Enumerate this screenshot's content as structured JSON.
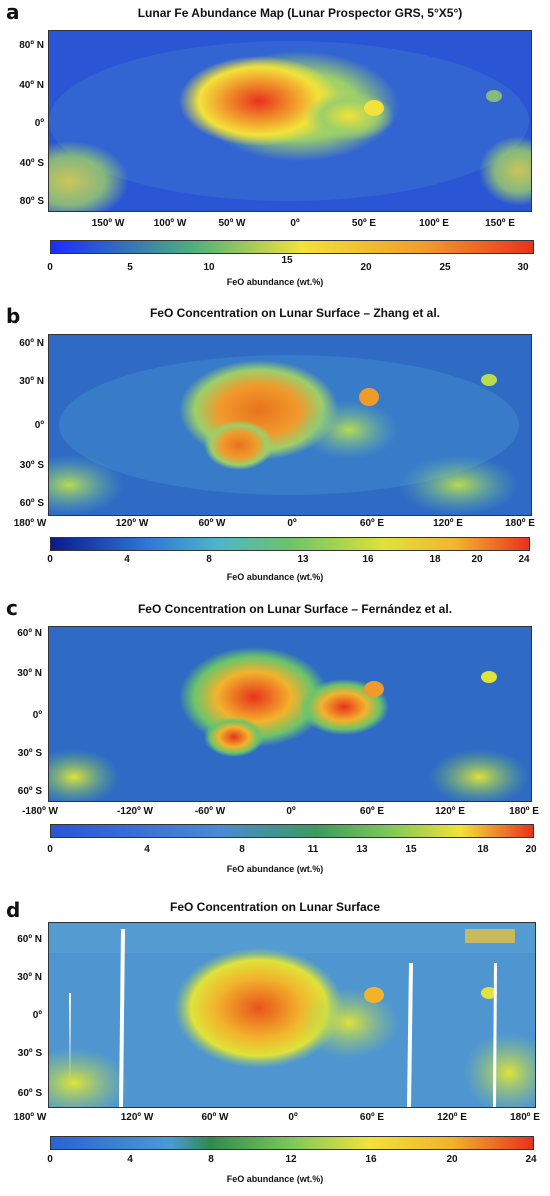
{
  "panels": [
    {
      "label": "a",
      "title": "Lunar Fe Abundance Map (Lunar Prospector GRS, 5°X5°)",
      "lat_labels": [
        "80º N",
        "40º N",
        "0º",
        "40º S",
        "80º S"
      ],
      "lon_labels": [
        "150º W",
        "100º W",
        "50º W",
        "0º",
        "50º E",
        "100º E",
        "150º E"
      ],
      "cb_ticks": [
        "0",
        "5",
        "10",
        "15",
        "20",
        "25",
        "30"
      ],
      "cb_label": "FeO abundance (wt.%)"
    },
    {
      "label": "b",
      "title": "FeO Concentration on Lunar Surface – Zhang et al.",
      "lat_labels": [
        "60º N",
        "30º N",
        "0º",
        "30º S",
        "60º S"
      ],
      "lon_labels": [
        "180º W",
        "120º W",
        "60º W",
        "0º",
        "60º E",
        "120º E",
        "180º E"
      ],
      "cb_ticks": [
        "0",
        "4",
        "8",
        "13",
        "16",
        "18",
        "20",
        "24"
      ],
      "cb_label": "FeO abundance (wt.%)"
    },
    {
      "label": "c",
      "title": "FeO Concentration on Lunar Surface – Fernández et al.",
      "lat_labels": [
        "60º N",
        "30º N",
        "0º",
        "30º S",
        "60º S"
      ],
      "lon_labels": [
        "-180º W",
        "-120º W",
        "-60º W",
        "0º",
        "60º E",
        "120º E",
        "180º E"
      ],
      "cb_ticks": [
        "0",
        "4",
        "8",
        "11",
        "13",
        "15",
        "18",
        "20"
      ],
      "cb_label": "FeO abundance (wt.%)"
    },
    {
      "label": "d",
      "title": "FeO Concentration on Lunar Surface",
      "lat_labels": [
        "60º N",
        "30º N",
        "0º",
        "30º S",
        "60º S"
      ],
      "lon_labels": [
        "180º W",
        "120º W",
        "60º W",
        "0º",
        "60º E",
        "120º E",
        "180º E"
      ],
      "cb_ticks": [
        "0",
        "4",
        "8",
        "12",
        "16",
        "20",
        "24"
      ],
      "cb_label": "FeO abundance (wt.%)"
    }
  ],
  "colors": {
    "low": "#1f3fd6",
    "mid_blue": "#3f7fd8",
    "green": "#4fb27a",
    "yellow": "#f2e23a",
    "orange": "#f19a2c",
    "high": "#e8321c"
  }
}
